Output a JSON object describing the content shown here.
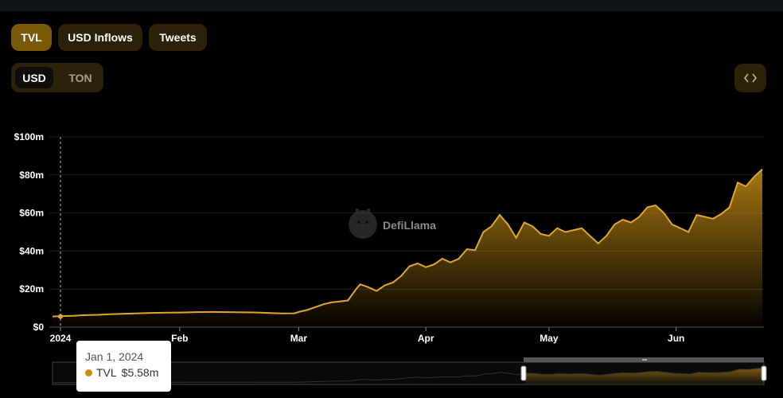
{
  "tabs": [
    {
      "label": "TVL",
      "active": true
    },
    {
      "label": "USD Inflows",
      "active": false
    },
    {
      "label": "Tweets",
      "active": false
    }
  ],
  "denomination": {
    "options": [
      "USD",
      "TON"
    ],
    "selected": "USD"
  },
  "embed_icon": "code-brackets-icon",
  "watermark": "DefiLlama",
  "tooltip": {
    "date": "Jan 1, 2024",
    "series": "TVL",
    "value": "$5.58m"
  },
  "colors": {
    "accent": "#7a5a08",
    "line": "#e0a62d",
    "background": "#000000"
  },
  "chart_data": {
    "type": "area",
    "series": [
      {
        "name": "TVL"
      }
    ],
    "y_tick_labels": [
      "$0",
      "$20m",
      "$40m",
      "$60m",
      "$80m",
      "$100m"
    ],
    "x_tick_labels": [
      "2024",
      "Feb",
      "Mar",
      "Apr",
      "May",
      "Jun"
    ],
    "ylim": [
      0,
      100
    ],
    "y_unit": "millions USD",
    "grid": true,
    "points": [
      [
        "2024-01-01",
        5.6
      ],
      [
        "2024-01-03",
        5.8
      ],
      [
        "2024-01-06",
        6.0
      ],
      [
        "2024-01-09",
        6.3
      ],
      [
        "2024-01-12",
        6.5
      ],
      [
        "2024-01-15",
        6.8
      ],
      [
        "2024-01-18",
        7.0
      ],
      [
        "2024-01-21",
        7.2
      ],
      [
        "2024-01-25",
        7.5
      ],
      [
        "2024-01-29",
        7.6
      ],
      [
        "2024-02-01",
        7.7
      ],
      [
        "2024-02-05",
        7.9
      ],
      [
        "2024-02-09",
        8.0
      ],
      [
        "2024-02-13",
        7.9
      ],
      [
        "2024-02-17",
        7.8
      ],
      [
        "2024-02-20",
        7.7
      ],
      [
        "2024-02-23",
        7.4
      ],
      [
        "2024-02-26",
        7.2
      ],
      [
        "2024-02-29",
        7.3
      ],
      [
        "2024-03-01",
        8.0
      ],
      [
        "2024-03-03",
        9.0
      ],
      [
        "2024-03-05",
        10.5
      ],
      [
        "2024-03-07",
        12.0
      ],
      [
        "2024-03-09",
        13.0
      ],
      [
        "2024-03-11",
        13.5
      ],
      [
        "2024-03-13",
        14.0
      ],
      [
        "2024-03-15",
        20.0
      ],
      [
        "2024-03-16",
        22.5
      ],
      [
        "2024-03-18",
        21.0
      ],
      [
        "2024-03-20",
        19.0
      ],
      [
        "2024-03-22",
        22.0
      ],
      [
        "2024-03-24",
        23.5
      ],
      [
        "2024-03-26",
        27.0
      ],
      [
        "2024-03-28",
        32.0
      ],
      [
        "2024-03-30",
        33.5
      ],
      [
        "2024-04-01",
        31.5
      ],
      [
        "2024-04-03",
        33.0
      ],
      [
        "2024-04-05",
        36.0
      ],
      [
        "2024-04-07",
        34.0
      ],
      [
        "2024-04-09",
        36.0
      ],
      [
        "2024-04-11",
        41.0
      ],
      [
        "2024-04-13",
        40.5
      ],
      [
        "2024-04-15",
        50.0
      ],
      [
        "2024-04-17",
        53.0
      ],
      [
        "2024-04-19",
        59.0
      ],
      [
        "2024-04-21",
        54.0
      ],
      [
        "2024-04-23",
        47.0
      ],
      [
        "2024-04-25",
        55.0
      ],
      [
        "2024-04-27",
        53.0
      ],
      [
        "2024-04-29",
        49.0
      ],
      [
        "2024-05-01",
        48.0
      ],
      [
        "2024-05-03",
        52.0
      ],
      [
        "2024-05-05",
        50.0
      ],
      [
        "2024-05-07",
        51.0
      ],
      [
        "2024-05-09",
        52.0
      ],
      [
        "2024-05-11",
        48.0
      ],
      [
        "2024-05-13",
        44.0
      ],
      [
        "2024-05-15",
        48.0
      ],
      [
        "2024-05-17",
        54.0
      ],
      [
        "2024-05-19",
        56.5
      ],
      [
        "2024-05-21",
        55.0
      ],
      [
        "2024-05-23",
        58.0
      ],
      [
        "2024-05-25",
        63.0
      ],
      [
        "2024-05-27",
        64.0
      ],
      [
        "2024-05-29",
        60.0
      ],
      [
        "2024-05-31",
        54.0
      ],
      [
        "2024-06-02",
        52.0
      ],
      [
        "2024-06-04",
        50.0
      ],
      [
        "2024-06-06",
        59.0
      ],
      [
        "2024-06-08",
        58.0
      ],
      [
        "2024-06-10",
        57.0
      ],
      [
        "2024-06-12",
        59.5
      ],
      [
        "2024-06-14",
        63.0
      ],
      [
        "2024-06-16",
        76.0
      ],
      [
        "2024-06-18",
        74.0
      ],
      [
        "2024-06-20",
        79.0
      ],
      [
        "2024-06-22",
        83.0
      ]
    ]
  }
}
